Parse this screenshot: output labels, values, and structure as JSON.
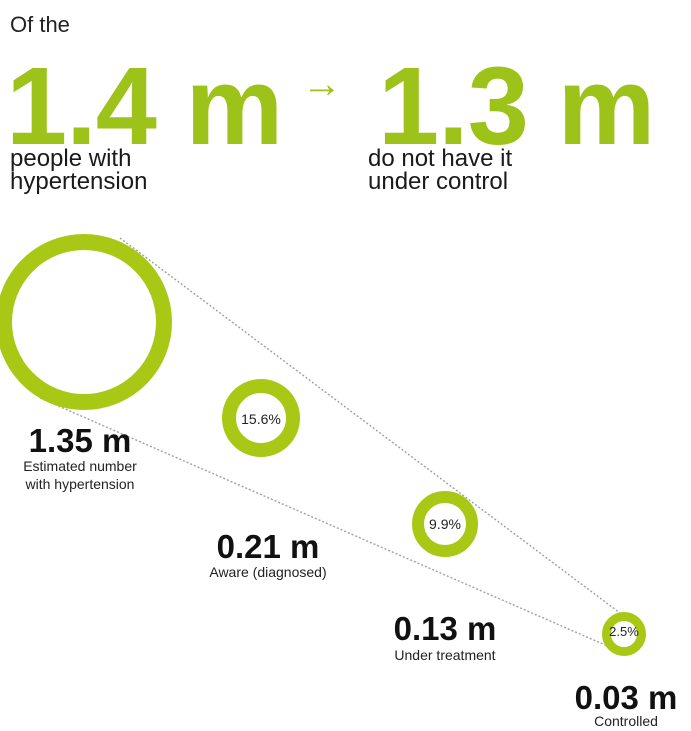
{
  "header": {
    "intro": "Of the",
    "left_value": "1.4 m",
    "arrow": "→",
    "right_value": "1.3 m",
    "left_caption_1": "people with",
    "left_caption_2": "hypertension",
    "right_caption_1": "do not have it",
    "right_caption_2": "under control"
  },
  "funnel": [
    {
      "value": "1.35 m",
      "label_1": "Estimated number",
      "label_2": "with hypertension",
      "pct": ""
    },
    {
      "value": "0.21 m",
      "label_1": "Aware (diagnosed)",
      "label_2": "",
      "pct": "15.6%"
    },
    {
      "value": "0.13 m",
      "label_1": "Under treatment",
      "label_2": "",
      "pct": "9.9%"
    },
    {
      "value": "0.03 m",
      "label_1": "Controlled",
      "label_2": "",
      "pct": "2.5%"
    }
  ],
  "colors": {
    "accent": "#9dc21a",
    "ring": "#a8c815",
    "text": "#1a1a1a"
  }
}
